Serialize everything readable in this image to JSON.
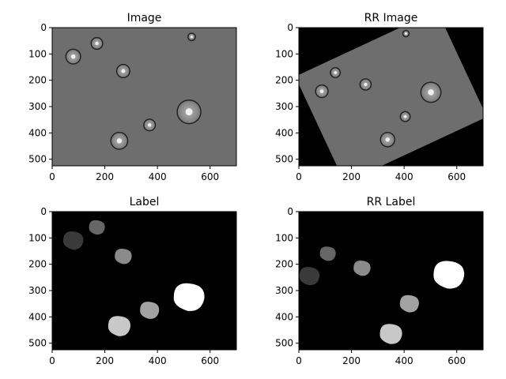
{
  "chart_data": [
    {
      "type": "image",
      "title": "Image",
      "xlim": [
        0,
        700
      ],
      "ylim": [
        525,
        0
      ],
      "xticks": [
        0,
        200,
        400,
        600
      ],
      "yticks": [
        0,
        100,
        200,
        300,
        400,
        500
      ],
      "content": "grayscale phase-contrast micrograph of cells"
    },
    {
      "type": "image",
      "title": "RR Image",
      "xlim": [
        0,
        700
      ],
      "ylim": [
        525,
        0
      ],
      "xticks": [
        0,
        200,
        400,
        600
      ],
      "yticks": [
        0,
        100,
        200,
        300,
        400,
        500
      ],
      "rotation_deg": -25,
      "content": "rotated micrograph with black corners"
    },
    {
      "type": "image",
      "title": "Label",
      "xlim": [
        0,
        700
      ],
      "ylim": [
        525,
        0
      ],
      "xticks": [
        0,
        200,
        400,
        600
      ],
      "yticks": [
        0,
        100,
        200,
        300,
        400,
        500
      ],
      "content": "segmentation label mask",
      "regions": [
        {
          "cx": 80,
          "cy": 110,
          "gray": "#3a3a3a"
        },
        {
          "cx": 170,
          "cy": 60,
          "gray": "#666666"
        },
        {
          "cx": 270,
          "cy": 170,
          "gray": "#8a8a8a"
        },
        {
          "cx": 370,
          "cy": 375,
          "gray": "#a2a2a2"
        },
        {
          "cx": 255,
          "cy": 435,
          "gray": "#c8c8c8"
        },
        {
          "cx": 520,
          "cy": 325,
          "gray": "#ffffff"
        }
      ]
    },
    {
      "type": "image",
      "title": "RR Label",
      "xlim": [
        0,
        700
      ],
      "ylim": [
        525,
        0
      ],
      "xticks": [
        0,
        200,
        400,
        600
      ],
      "yticks": [
        0,
        100,
        200,
        300,
        400,
        500
      ],
      "rotation_deg": -25,
      "content": "rotated segmentation label mask",
      "regions": [
        {
          "cx": 40,
          "cy": 245,
          "gray": "#3a3a3a"
        },
        {
          "cx": 110,
          "cy": 160,
          "gray": "#666666"
        },
        {
          "cx": 240,
          "cy": 215,
          "gray": "#8a8a8a"
        },
        {
          "cx": 420,
          "cy": 350,
          "gray": "#a2a2a2"
        },
        {
          "cx": 350,
          "cy": 465,
          "gray": "#c8c8c8"
        },
        {
          "cx": 570,
          "cy": 240,
          "gray": "#ffffff"
        }
      ]
    }
  ]
}
